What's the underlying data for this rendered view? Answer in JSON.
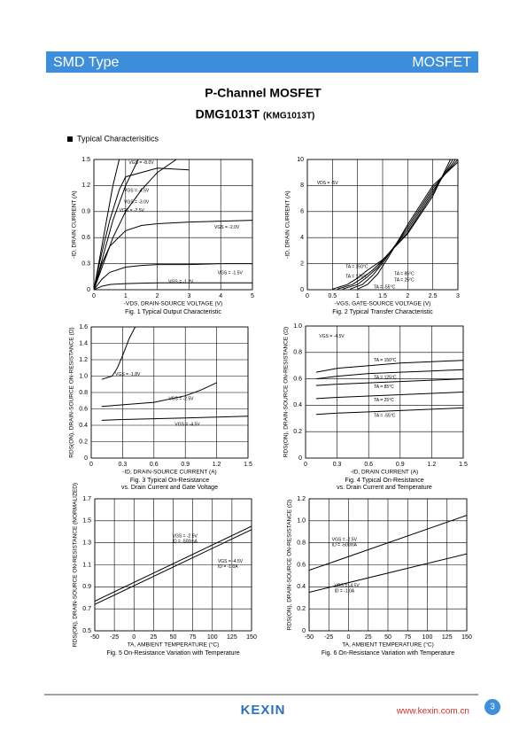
{
  "header": {
    "left": "SMD Type",
    "right": "MOSFET"
  },
  "title": "P-Channel MOSFET",
  "part": "DMG1013T",
  "alt_part": "(KMG1013T)",
  "section": "Typical  Characterisitics",
  "chart_data": [
    {
      "type": "line",
      "xlabel": "-VDS, DRAIN-SOURCE VOLTAGE (V)",
      "ylabel": "-ID, DRAIN CURRENT (A)",
      "caption": [
        "Fig. 1 Typical Output Characteristic"
      ],
      "xlim": [
        0,
        5
      ],
      "xticks": [
        0,
        1,
        2,
        3,
        4,
        5
      ],
      "ylim": [
        0,
        1.5
      ],
      "yticks": [
        0,
        0.3,
        0.6,
        0.9,
        1.2,
        1.5
      ],
      "grid": true,
      "color": "#000000",
      "series": [
        {
          "name": "VGS = -8.0V",
          "x": [
            0,
            0.2,
            0.4,
            0.6,
            0.8
          ],
          "values": [
            0,
            0.4,
            0.8,
            1.2,
            1.5
          ]
        },
        {
          "name": "VGS = -4.5V",
          "x": [
            0,
            0.2,
            0.5,
            0.8,
            1,
            2,
            3
          ],
          "values": [
            0,
            0.35,
            0.8,
            1.15,
            1.3,
            1.4,
            1.38
          ]
        },
        {
          "name": "VGS = -3.0V",
          "x": [
            0,
            0.3,
            0.6,
            1,
            1.4
          ],
          "values": [
            0,
            0.4,
            0.8,
            1.2,
            1.5
          ]
        },
        {
          "name": "VGS = -2.5V",
          "x": [
            0,
            0.3,
            0.6,
            1,
            1.5,
            2,
            2.6
          ],
          "values": [
            0,
            0.3,
            0.6,
            0.9,
            1.15,
            1.35,
            1.5
          ]
        },
        {
          "name": "VGS = -2.0V",
          "x": [
            0,
            0.25,
            0.5,
            1,
            1.5,
            2,
            3,
            4,
            5
          ],
          "values": [
            0,
            0.3,
            0.5,
            0.68,
            0.74,
            0.76,
            0.78,
            0.79,
            0.8
          ]
        },
        {
          "name": "VGS = -1.5V",
          "x": [
            0,
            0.25,
            0.5,
            1,
            1.5,
            2,
            3,
            4,
            5
          ],
          "values": [
            0,
            0.12,
            0.2,
            0.26,
            0.28,
            0.29,
            0.29,
            0.3,
            0.3
          ]
        },
        {
          "name": "VGS = -1.2V",
          "x": [
            0,
            0.25,
            0.5,
            1,
            1.5,
            2,
            3,
            4,
            5
          ],
          "values": [
            0,
            0.04,
            0.06,
            0.07,
            0.075,
            0.08,
            0.08,
            0.08,
            0.08
          ]
        }
      ]
    },
    {
      "type": "line",
      "xlabel": "-VGS, GATE-SOURCE VOLTAGE (V)",
      "ylabel": "-ID, DRAIN CURRENT (A)",
      "caption": [
        "Fig. 2  Typical Transfer Characteristic"
      ],
      "annotation": "VDS = -5V",
      "xlim": [
        0,
        3
      ],
      "xticks": [
        0,
        0.5,
        1,
        1.5,
        2,
        2.5,
        3
      ],
      "ylim": [
        0,
        10
      ],
      "yticks": [
        0,
        2,
        4,
        6,
        8,
        10
      ],
      "grid": true,
      "color": "#000000",
      "series": [
        {
          "name": "TA = 150°C",
          "x": [
            0.5,
            0.8,
            1,
            1.2,
            1.5,
            2,
            2.5,
            2.85
          ],
          "values": [
            0.05,
            0.4,
            0.9,
            1.5,
            2.3,
            4.3,
            7.2,
            10
          ]
        },
        {
          "name": "TA = 125°C",
          "x": [
            0.6,
            0.9,
            1.1,
            1.3,
            1.5,
            2,
            2.5,
            2.9
          ],
          "values": [
            0.05,
            0.4,
            0.9,
            1.5,
            2.25,
            4.4,
            7.4,
            10
          ]
        },
        {
          "name": "TA = 85°C",
          "x": [
            0.7,
            1,
            1.2,
            1.4,
            1.5,
            2,
            2.5,
            2.95
          ],
          "values": [
            0.05,
            0.4,
            1,
            1.7,
            2.2,
            4.6,
            7.6,
            10
          ]
        },
        {
          "name": "TA = 25°C",
          "x": [
            0.85,
            1.1,
            1.3,
            1.45,
            1.55,
            2,
            2.5,
            3
          ],
          "values": [
            0.05,
            0.4,
            1.1,
            1.8,
            2.3,
            4.8,
            7.8,
            10
          ]
        },
        {
          "name": "TA = -55°C",
          "x": [
            1,
            1.2,
            1.4,
            1.5,
            1.6,
            2,
            2.5,
            3
          ],
          "values": [
            0.05,
            0.4,
            1.2,
            1.8,
            2.4,
            5,
            8,
            9.8
          ]
        }
      ]
    },
    {
      "type": "line",
      "xlabel": "-ID, DRAIN-SOURCE CURRENT (A)",
      "ylabel": "RDS(ON), DRAIN-SOURCE ON-RESISTANCE (Ω)",
      "caption": [
        "Fig. 3  Typical On-Resistance",
        "vs. Drain Current and Gate Voltage"
      ],
      "xlim": [
        0,
        1.5
      ],
      "xticks": [
        0,
        0.3,
        0.6,
        0.9,
        1.2,
        1.5
      ],
      "ylim": [
        0,
        1.6
      ],
      "yticks": [
        0,
        0.2,
        0.4,
        0.6,
        0.8,
        {
          "value": 1,
          "label": "1.0"
        },
        1.2,
        1.4,
        1.6
      ],
      "grid": true,
      "color": "#000000",
      "series": [
        {
          "name": "VGS = -1.8V",
          "x": [
            0.1,
            0.2,
            0.25,
            0.3,
            0.36,
            0.42
          ],
          "values": [
            0.96,
            1.0,
            1.1,
            1.25,
            1.45,
            1.6
          ]
        },
        {
          "name": "VGS = -2.5V",
          "x": [
            0.1,
            0.3,
            0.6,
            0.9,
            1.05,
            1.2
          ],
          "values": [
            0.63,
            0.65,
            0.68,
            0.76,
            0.83,
            0.92
          ]
        },
        {
          "name": "VGS = -4.5V",
          "x": [
            0.1,
            0.3,
            0.6,
            0.9,
            1.2,
            1.5
          ],
          "values": [
            0.46,
            0.47,
            0.48,
            0.49,
            0.5,
            0.51
          ]
        }
      ]
    },
    {
      "type": "line",
      "xlabel": "-ID, DRAIN CURRENT (A)",
      "ylabel": "RDS(ON), DRAIN-SOURCE ON-RESISTANCE (Ω)",
      "caption": [
        "Fig. 4 Typical On-Resistance",
        "vs. Drain Current and Temperature"
      ],
      "annotation": "VGS = -4.5V",
      "xlim": [
        0,
        1.5
      ],
      "xticks": [
        0,
        0.3,
        0.6,
        0.9,
        1.2,
        1.5
      ],
      "ylim": [
        0,
        1
      ],
      "yticks": [
        0,
        0.2,
        0.4,
        0.6,
        0.8,
        {
          "value": 1,
          "label": "1.0"
        }
      ],
      "grid": true,
      "color": "#000000",
      "series": [
        {
          "name": "TA = 150°C",
          "x": [
            0.1,
            0.3,
            0.6,
            0.9,
            1.2,
            1.5
          ],
          "values": [
            0.65,
            0.68,
            0.7,
            0.72,
            0.73,
            0.74
          ]
        },
        {
          "name": "TA = 125°C",
          "x": [
            0.1,
            0.3,
            0.6,
            0.9,
            1.2,
            1.5
          ],
          "values": [
            0.6,
            0.62,
            0.64,
            0.65,
            0.66,
            0.67
          ]
        },
        {
          "name": "TA = 85°C",
          "x": [
            0.1,
            0.3,
            0.6,
            0.9,
            1.2,
            1.5
          ],
          "values": [
            0.55,
            0.56,
            0.57,
            0.58,
            0.59,
            0.6
          ]
        },
        {
          "name": "TA = 25°C",
          "x": [
            0.1,
            0.3,
            0.6,
            0.9,
            1.2,
            1.5
          ],
          "values": [
            0.45,
            0.46,
            0.47,
            0.48,
            0.49,
            0.5
          ]
        },
        {
          "name": "TA = -55°C",
          "x": [
            0.1,
            0.3,
            0.6,
            0.9,
            1.2,
            1.5
          ],
          "values": [
            0.33,
            0.34,
            0.35,
            0.36,
            0.37,
            0.38
          ]
        }
      ]
    },
    {
      "type": "line",
      "xlabel": "TA, AMBIENT TEMPERATURE (°C)",
      "ylabel": "RDS(ON), DRAIN-SOURCE ON-RESISTANCE (NORMALIZED)",
      "caption": [
        "Fig. 5 On-Resistance Variation with Temperature"
      ],
      "xlim": [
        -50,
        150
      ],
      "xticks": [
        -50,
        -25,
        0,
        25,
        50,
        75,
        100,
        125,
        150
      ],
      "ylim": [
        0.5,
        1.7
      ],
      "yticks": [
        0.5,
        0.7,
        0.9,
        1.1,
        1.3,
        1.5,
        1.7
      ],
      "grid": true,
      "color": "#000000",
      "series": [
        {
          "name": "VGS = -2.5V",
          "condition": "ID = -500mA",
          "x": [
            -50,
            150
          ],
          "values": [
            0.77,
            1.45
          ]
        },
        {
          "name": "VGS = -4.5V",
          "condition": "ID = -1.0A",
          "x": [
            -50,
            150
          ],
          "values": [
            0.74,
            1.42
          ]
        }
      ]
    },
    {
      "type": "line",
      "xlabel": "TA, AMBIENT TEMPERATURE (°C)",
      "ylabel": "RDS(ON), DRAIN-SOURCE ON-RESISTANCE (Ω)",
      "caption": [
        "Fig. 6 On-Resistance Variation with Temperature"
      ],
      "xlim": [
        -50,
        150
      ],
      "xticks": [
        -50,
        -25,
        0,
        25,
        50,
        75,
        100,
        125,
        150
      ],
      "ylim": [
        0,
        1.2
      ],
      "yticks": [
        0,
        0.2,
        0.4,
        0.6,
        0.8,
        {
          "value": 1,
          "label": "1.0"
        },
        1.2
      ],
      "grid": true,
      "color": "#000000",
      "series": [
        {
          "name": "VGS = -2.5V",
          "condition": "ID = -500mA",
          "x": [
            -50,
            150
          ],
          "values": [
            0.55,
            1.05
          ]
        },
        {
          "name": "VGS = -4.5V",
          "condition": "ID = -1.0A",
          "x": [
            -50,
            150
          ],
          "values": [
            0.35,
            0.7
          ]
        }
      ]
    }
  ],
  "footer": {
    "logo": "KEXIN",
    "url": "www.kexin.com.cn",
    "page": "3"
  }
}
